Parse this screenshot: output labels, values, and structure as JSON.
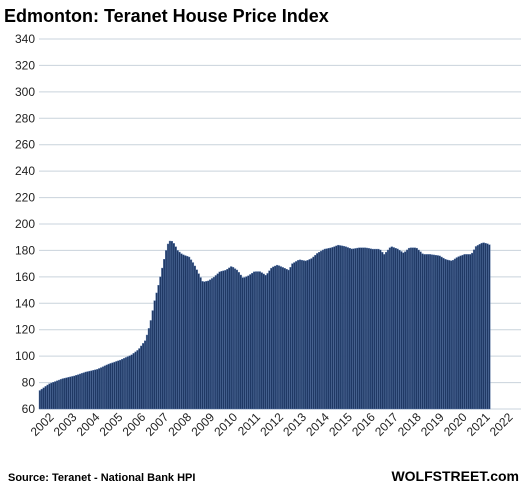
{
  "chart_data": {
    "type": "bar",
    "title": "Edmonton: Teranet House Price Index",
    "ylim": [
      60,
      340
    ],
    "yticks": [
      60,
      80,
      100,
      120,
      140,
      160,
      180,
      200,
      220,
      240,
      260,
      280,
      300,
      320,
      340
    ],
    "year_labels": [
      "2002",
      "2003",
      "2004",
      "2005",
      "2006",
      "2007",
      "2008",
      "2009",
      "2010",
      "2011",
      "2012",
      "2013",
      "2014",
      "2015",
      "2016",
      "2017",
      "2018",
      "2019",
      "2020",
      "2021",
      "2022"
    ],
    "grid": true,
    "source": "Source: Teranet - National Bank HPI",
    "watermark": "WOLFSTREET.com",
    "bar_color": "#1f3864",
    "anchors": [
      [
        2002.0,
        74
      ],
      [
        2002.4,
        79
      ],
      [
        2003.0,
        83
      ],
      [
        2003.5,
        85
      ],
      [
        2004.0,
        88
      ],
      [
        2004.5,
        90
      ],
      [
        2005.0,
        94
      ],
      [
        2005.5,
        97
      ],
      [
        2006.0,
        101
      ],
      [
        2006.3,
        105
      ],
      [
        2006.6,
        112
      ],
      [
        2006.8,
        124
      ],
      [
        2007.0,
        142
      ],
      [
        2007.2,
        156
      ],
      [
        2007.4,
        172
      ],
      [
        2007.55,
        184
      ],
      [
        2007.7,
        188
      ],
      [
        2007.85,
        185
      ],
      [
        2008.0,
        180
      ],
      [
        2008.2,
        177
      ],
      [
        2008.5,
        175
      ],
      [
        2008.7,
        170
      ],
      [
        2008.9,
        163
      ],
      [
        2009.1,
        156
      ],
      [
        2009.35,
        157
      ],
      [
        2009.6,
        160
      ],
      [
        2009.85,
        164
      ],
      [
        2010.1,
        165
      ],
      [
        2010.35,
        168
      ],
      [
        2010.6,
        165
      ],
      [
        2010.85,
        159
      ],
      [
        2011.1,
        161
      ],
      [
        2011.35,
        164
      ],
      [
        2011.6,
        164
      ],
      [
        2011.85,
        161
      ],
      [
        2012.1,
        167
      ],
      [
        2012.35,
        169
      ],
      [
        2012.6,
        167
      ],
      [
        2012.85,
        165
      ],
      [
        2013.0,
        170
      ],
      [
        2013.3,
        173
      ],
      [
        2013.6,
        172
      ],
      [
        2013.85,
        174
      ],
      [
        2014.1,
        178
      ],
      [
        2014.4,
        181
      ],
      [
        2014.7,
        182
      ],
      [
        2015.0,
        184
      ],
      [
        2015.3,
        183
      ],
      [
        2015.6,
        181
      ],
      [
        2015.9,
        182
      ],
      [
        2016.2,
        182
      ],
      [
        2016.5,
        181
      ],
      [
        2016.8,
        181
      ],
      [
        2017.0,
        177
      ],
      [
        2017.3,
        183
      ],
      [
        2017.6,
        181
      ],
      [
        2017.85,
        178
      ],
      [
        2018.1,
        182
      ],
      [
        2018.4,
        182
      ],
      [
        2018.7,
        177
      ],
      [
        2019.0,
        177
      ],
      [
        2019.4,
        176
      ],
      [
        2019.7,
        173
      ],
      [
        2019.95,
        172
      ],
      [
        2020.2,
        175
      ],
      [
        2020.5,
        177
      ],
      [
        2020.8,
        177
      ],
      [
        2021.0,
        183
      ],
      [
        2021.3,
        186
      ],
      [
        2021.5,
        185
      ],
      [
        2021.62,
        184
      ]
    ]
  }
}
